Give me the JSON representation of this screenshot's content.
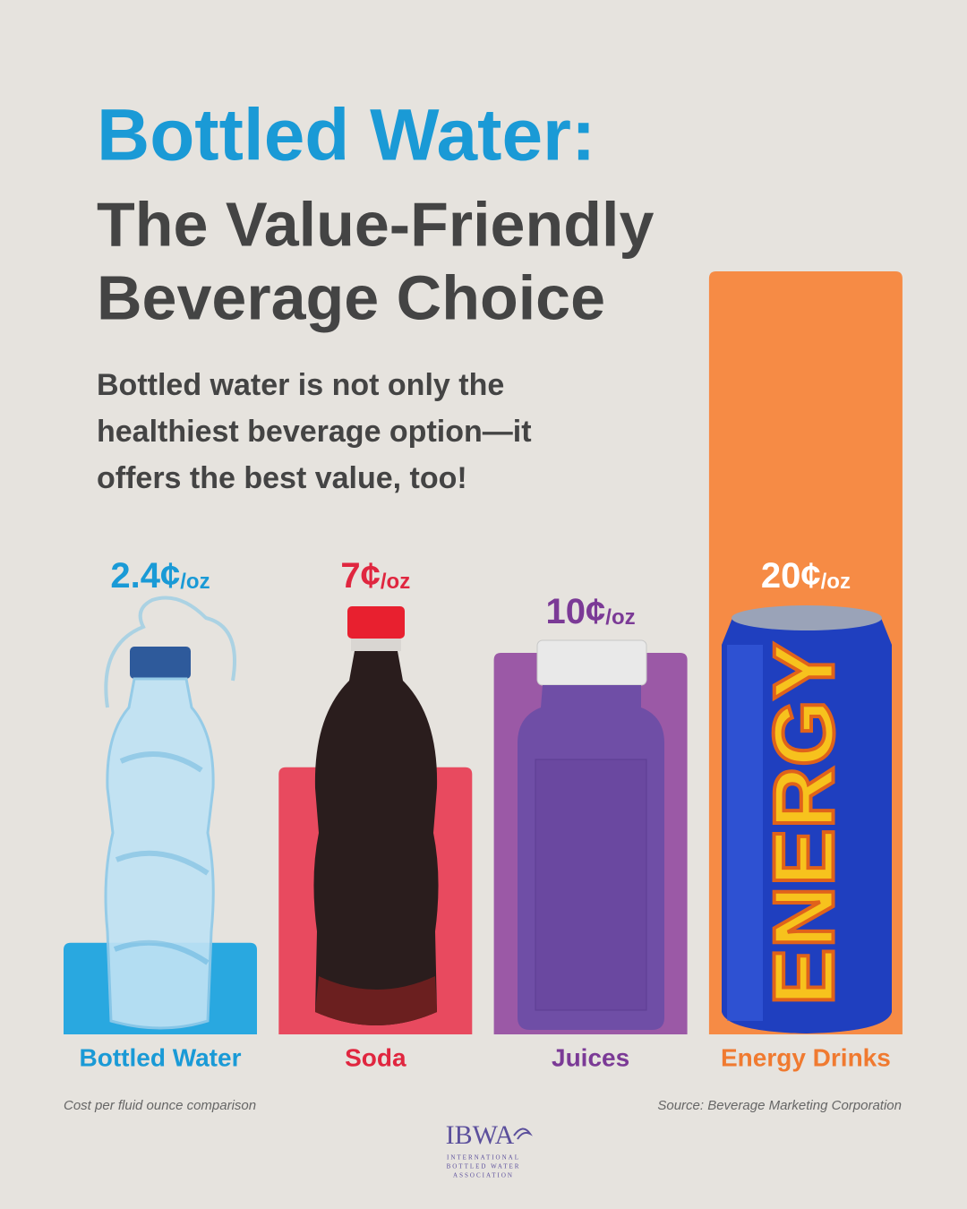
{
  "chart_data": {
    "type": "bar",
    "title": "Bottled Water:",
    "subtitle_lines": [
      "The Value-Friendly",
      "Beverage Choice"
    ],
    "description_lines": [
      "Bottled water is not only the",
      "healthiest beverage option—it",
      "offers the best value, too!"
    ],
    "categories": [
      "Bottled Water",
      "Soda",
      "Juices",
      "Energy Drinks"
    ],
    "values": [
      2.4,
      7,
      10,
      20
    ],
    "value_labels": [
      "2.4¢",
      "7¢",
      "10¢",
      "20¢"
    ],
    "value_unit": "/oz",
    "colors": [
      "#29a8e0",
      "#e84a5f",
      "#9b59a6",
      "#f68b45"
    ],
    "label_colors": [
      "#1a9ad6",
      "#e0263f",
      "#7b3a96",
      "#f07a30"
    ],
    "value_label_colors": [
      "#1a9ad6",
      "#e0263f",
      "#7b3a96",
      "#ffffff"
    ],
    "ylim": [
      0,
      20
    ],
    "can_text": "ENERGY",
    "footnote": "Cost per fluid ounce comparison",
    "source": "Source: Beverage Marketing Corporation"
  },
  "logo": {
    "name": "IBWA",
    "lines": [
      "INTERNATIONAL",
      "BOTTLED WATER",
      "ASSOCIATION"
    ]
  }
}
